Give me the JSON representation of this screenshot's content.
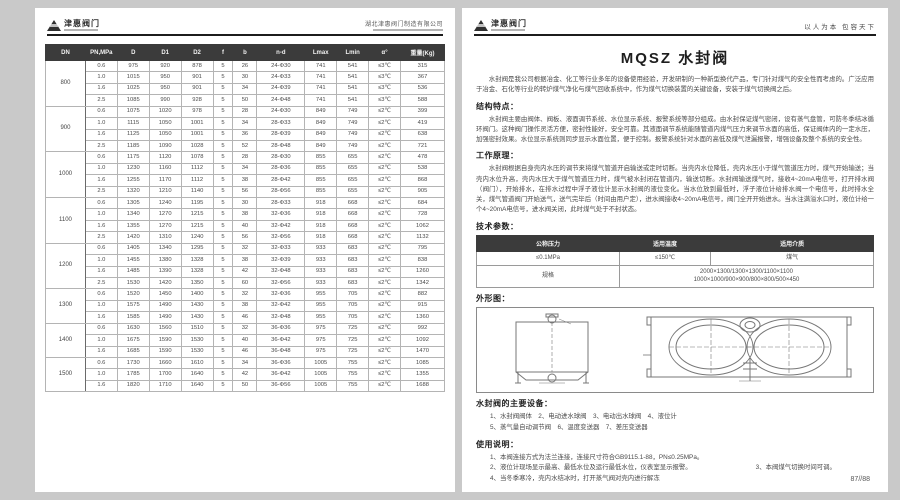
{
  "left_page": {
    "header": {
      "brand": "津惠阀门",
      "company": "湖北津惠阀门制造有限公司"
    },
    "table": {
      "headers": [
        "DN",
        "PN,MPa",
        "D",
        "D1",
        "D2",
        "f",
        "b",
        "n-d",
        "Lmax",
        "Lmin",
        "α°",
        "重量(Kg)"
      ],
      "groups": [
        {
          "dn": "800",
          "rows": [
            [
              "0.6",
              "975",
              "920",
              "878",
              "5",
              "26",
              "24-Φ30",
              "741",
              "541",
              "≤3℃",
              "315"
            ],
            [
              "1.0",
              "1015",
              "950",
              "901",
              "5",
              "30",
              "24-Φ33",
              "741",
              "541",
              "≤3℃",
              "367"
            ],
            [
              "1.6",
              "1025",
              "950",
              "901",
              "5",
              "34",
              "24-Φ39",
              "741",
              "541",
              "≤3℃",
              "536"
            ],
            [
              "2.5",
              "1085",
              "990",
              "928",
              "5",
              "50",
              "24-Φ48",
              "741",
              "541",
              "≤3℃",
              "588"
            ]
          ]
        },
        {
          "dn": "900",
          "rows": [
            [
              "0.6",
              "1075",
              "1020",
              "978",
              "5",
              "28",
              "24-Φ30",
              "849",
              "749",
              "≤2℃",
              "399"
            ],
            [
              "1.0",
              "1115",
              "1050",
              "1001",
              "5",
              "34",
              "28-Φ33",
              "849",
              "749",
              "≤2℃",
              "419"
            ],
            [
              "1.6",
              "1125",
              "1050",
              "1001",
              "5",
              "36",
              "28-Φ39",
              "849",
              "749",
              "≤2℃",
              "638"
            ],
            [
              "2.5",
              "1185",
              "1090",
              "1028",
              "5",
              "52",
              "28-Φ48",
              "849",
              "749",
              "≤2℃",
              "721"
            ]
          ]
        },
        {
          "dn": "1000",
          "rows": [
            [
              "0.6",
              "1175",
              "1120",
              "1078",
              "5",
              "28",
              "28-Φ30",
              "855",
              "655",
              "≤2℃",
              "478"
            ],
            [
              "1.0",
              "1230",
              "1160",
              "1112",
              "5",
              "34",
              "28-Φ36",
              "855",
              "655",
              "≤2℃",
              "538"
            ],
            [
              "1.6",
              "1255",
              "1170",
              "1112",
              "5",
              "38",
              "28-Φ42",
              "855",
              "655",
              "≤2℃",
              "868"
            ],
            [
              "2.5",
              "1320",
              "1210",
              "1140",
              "5",
              "56",
              "28-Φ56",
              "855",
              "655",
              "≤2℃",
              "905"
            ]
          ]
        },
        {
          "dn": "1100",
          "rows": [
            [
              "0.6",
              "1305",
              "1240",
              "1195",
              "5",
              "30",
              "28-Φ33",
              "918",
              "668",
              "≤2℃",
              "684"
            ],
            [
              "1.0",
              "1340",
              "1270",
              "1215",
              "5",
              "38",
              "32-Φ36",
              "918",
              "668",
              "≤2℃",
              "728"
            ],
            [
              "1.6",
              "1355",
              "1270",
              "1215",
              "5",
              "40",
              "32-Φ42",
              "918",
              "668",
              "≤2℃",
              "1062"
            ],
            [
              "2.5",
              "1420",
              "1310",
              "1240",
              "5",
              "56",
              "32-Φ56",
              "918",
              "668",
              "≤2℃",
              "1132"
            ]
          ]
        },
        {
          "dn": "1200",
          "rows": [
            [
              "0.6",
              "1405",
              "1340",
              "1295",
              "5",
              "32",
              "32-Φ33",
              "933",
              "683",
              "≤2℃",
              "795"
            ],
            [
              "1.0",
              "1455",
              "1380",
              "1328",
              "5",
              "38",
              "32-Φ39",
              "933",
              "683",
              "≤2℃",
              "838"
            ],
            [
              "1.6",
              "1485",
              "1390",
              "1328",
              "5",
              "42",
              "32-Φ48",
              "933",
              "683",
              "≤2℃",
              "1260"
            ],
            [
              "2.5",
              "1530",
              "1420",
              "1350",
              "5",
              "60",
              "32-Φ56",
              "933",
              "683",
              "≤2℃",
              "1342"
            ]
          ]
        },
        {
          "dn": "1300",
          "rows": [
            [
              "0.6",
              "1520",
              "1450",
              "1400",
              "5",
              "32",
              "32-Φ36",
              "955",
              "705",
              "≤2℃",
              "882"
            ],
            [
              "1.0",
              "1575",
              "1490",
              "1430",
              "5",
              "38",
              "32-Φ42",
              "955",
              "705",
              "≤2℃",
              "915"
            ],
            [
              "1.6",
              "1585",
              "1490",
              "1430",
              "5",
              "46",
              "32-Φ48",
              "955",
              "705",
              "≤2℃",
              "1360"
            ]
          ]
        },
        {
          "dn": "1400",
          "rows": [
            [
              "0.6",
              "1630",
              "1560",
              "1510",
              "5",
              "32",
              "36-Φ36",
              "975",
              "725",
              "≤2℃",
              "992"
            ],
            [
              "1.0",
              "1675",
              "1590",
              "1530",
              "5",
              "40",
              "36-Φ42",
              "975",
              "725",
              "≤2℃",
              "1092"
            ],
            [
              "1.6",
              "1685",
              "1590",
              "1530",
              "5",
              "46",
              "36-Φ48",
              "975",
              "725",
              "≤2℃",
              "1470"
            ]
          ]
        },
        {
          "dn": "1500",
          "rows": [
            [
              "0.6",
              "1730",
              "1660",
              "1610",
              "5",
              "34",
              "36-Φ36",
              "1005",
              "755",
              "≤2℃",
              "1085"
            ],
            [
              "1.0",
              "1785",
              "1700",
              "1640",
              "5",
              "42",
              "36-Φ42",
              "1005",
              "755",
              "≤2℃",
              "1355"
            ],
            [
              "1.6",
              "1820",
              "1710",
              "1640",
              "5",
              "50",
              "36-Φ56",
              "1005",
              "755",
              "≤2℃",
              "1688"
            ]
          ]
        }
      ]
    }
  },
  "right_page": {
    "header": {
      "brand": "津惠阀门",
      "slogan": "以人为本  包容天下"
    },
    "title": "MQSZ 水封阀",
    "intro": "水封阀是我公司根据冶金、化工等行业多年的设备使用经验，开发研制的一种新型换代产品，专门针对煤气的安全性而考虑的。广泛应用于冶金、石化等行业的转炉煤气净化与煤气回收系统中，作为煤气切换装置的关键设备，安装于煤气切换阀之后。",
    "features": {
      "heading": "结构特点：",
      "text": "水封阀主要由阀体、阀板、液面调节系统、水位显示系统、报警系统等部分组成。由水封保证煤气密闭，设有蒸气盘管，可防冬季结冰循环阀门。这种阀门操作灵活方便，密封性能好，安全可靠。其液面调节系统能随管道内煤气压力来调节水面的高低，保证阀体内的一定水压，加强密封效果。水位显示系统则同步显示水面位置，便于控制。报警系统针对水面的高低及煤气泄漏报警，增强设备及整个系统的安全性。"
    },
    "principle": {
      "heading": "工作原理：",
      "text": "水封阀根据自身壳内水压的调节来将煤气管道开启输送或定时切断。当壳内水位降低，壳内水压小于煤气管道压力时，煤气开始输送；当壳内水位升高，壳内水压大于煤气管道压力时，煤气被水封闭在管道内，输送切断。水封阀输送煤气时，接收4~20mA电信号，打开排水阀（阀门），开始排水，在排水过程中浮子液位计显示水封阀的液位变化。当水位放到最低时，浮子液位计给排水阀一个电信号，此时排水全关，煤气管道阀门开始送气，送气完毕后（时间由用户定），进水阀接收4~20mA电信号，阀门全开开始进水。当水注满溢水口时，液位计给一个4~20mA电信号，进水阀关闭，此时煤气处于不封状态。"
    },
    "tech": {
      "heading": "技术参数：",
      "headers": [
        "公称压力",
        "适用温度",
        "适用介质"
      ],
      "row1": [
        "≤0.1MPa",
        "≤150℃",
        "煤气"
      ],
      "spec_label": "规格",
      "spec_line1": "2000×1300/1300×1300/1100×1100",
      "spec_line2": "1000×1000/900×900/800×800/500×450"
    },
    "outline_heading": "外形图：",
    "equipment": {
      "heading": "水封阀的主要设备：",
      "line1": "1、水封阀阀体　2、电动进水球阀　3、电动出水球阀　4、液位计",
      "line2": "5、蒸气量自动调节阀　6、温度变送器　7、差压变送器"
    },
    "usage": {
      "heading": "使用说明：",
      "item1": "1、本阀连接方式为法兰连接，连接尺寸符合GB9115.1-88，PN≤0.25MPa。",
      "item2": "2、液位计现场显示最高、最低水位及运行最低水位，仪表室显示报警。",
      "item3": "3、本阀煤气切换时间可调。",
      "item4": "4、当冬季寒冷，壳内水结冰时，打开蒸气阀对壳内进行解冻"
    },
    "page_number": "87//88"
  }
}
